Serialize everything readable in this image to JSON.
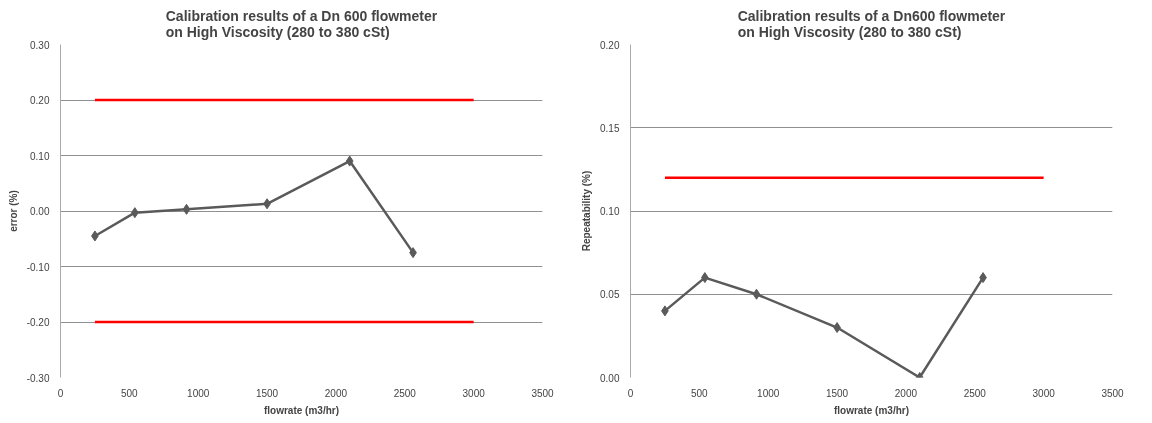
{
  "chart_data": [
    {
      "type": "line",
      "title": "Calibration results of a Dn 600 flowmeter\non High Viscosity (280 to 380 cSt)",
      "xlabel": "flowrate (m3/hr)",
      "ylabel": "error (%)",
      "xlim": [
        0,
        3500
      ],
      "xticks": [
        0,
        500,
        1000,
        1500,
        2000,
        2500,
        3000,
        3500
      ],
      "ylim": [
        -0.3,
        0.3
      ],
      "yticks": [
        {
          "value": -0.3,
          "label": "-0.30"
        },
        {
          "value": -0.2,
          "label": "-0.20"
        },
        {
          "value": -0.1,
          "label": "-0.10"
        },
        {
          "value": 0,
          "label": "0.00"
        },
        {
          "value": 0.1,
          "label": "0.10"
        },
        {
          "value": 0.2,
          "label": "0.20"
        },
        {
          "value": 0.3,
          "label": "0.30"
        }
      ],
      "grid": "y",
      "series": [
        {
          "color": "#5a5a5a",
          "marker": "diamond",
          "x": [
            250,
            540,
            915,
            1500,
            2100,
            2560
          ],
          "values": [
            -0.045,
            -0.003,
            0.003,
            0.013,
            0.09,
            -0.075
          ]
        },
        {
          "color": "#ff0000",
          "marker": "none",
          "x": [
            250,
            3000
          ],
          "values": [
            0.2,
            0.2
          ]
        },
        {
          "color": "#ff0000",
          "marker": "none",
          "x": [
            250,
            3000
          ],
          "values": [
            -0.2,
            -0.2
          ]
        }
      ]
    },
    {
      "type": "line",
      "title": "Calibration results of a Dn600 flowmeter\non High Viscosity (280 to 380 cSt)",
      "xlabel": "flowrate (m3/hr)",
      "ylabel": "Repeatability (%)",
      "xlim": [
        0,
        3500
      ],
      "xticks": [
        0,
        500,
        1000,
        1500,
        2000,
        2500,
        3000,
        3500
      ],
      "ylim": [
        0,
        0.2
      ],
      "yticks": [
        {
          "value": 0,
          "label": "0.00"
        },
        {
          "value": 0.05,
          "label": "0.05"
        },
        {
          "value": 0.1,
          "label": "0.10"
        },
        {
          "value": 0.15,
          "label": "0.15"
        },
        {
          "value": 0.2,
          "label": "0.20"
        }
      ],
      "grid": "y",
      "series": [
        {
          "color": "#5a5a5a",
          "marker": "diamond",
          "x": [
            250,
            540,
            915,
            1500,
            2100,
            2560
          ],
          "values": [
            0.04,
            0.06,
            0.05,
            0.03,
            0.0,
            0.06
          ]
        },
        {
          "color": "#ff0000",
          "marker": "none",
          "x": [
            250,
            3000
          ],
          "values": [
            0.12,
            0.12
          ]
        }
      ]
    }
  ]
}
